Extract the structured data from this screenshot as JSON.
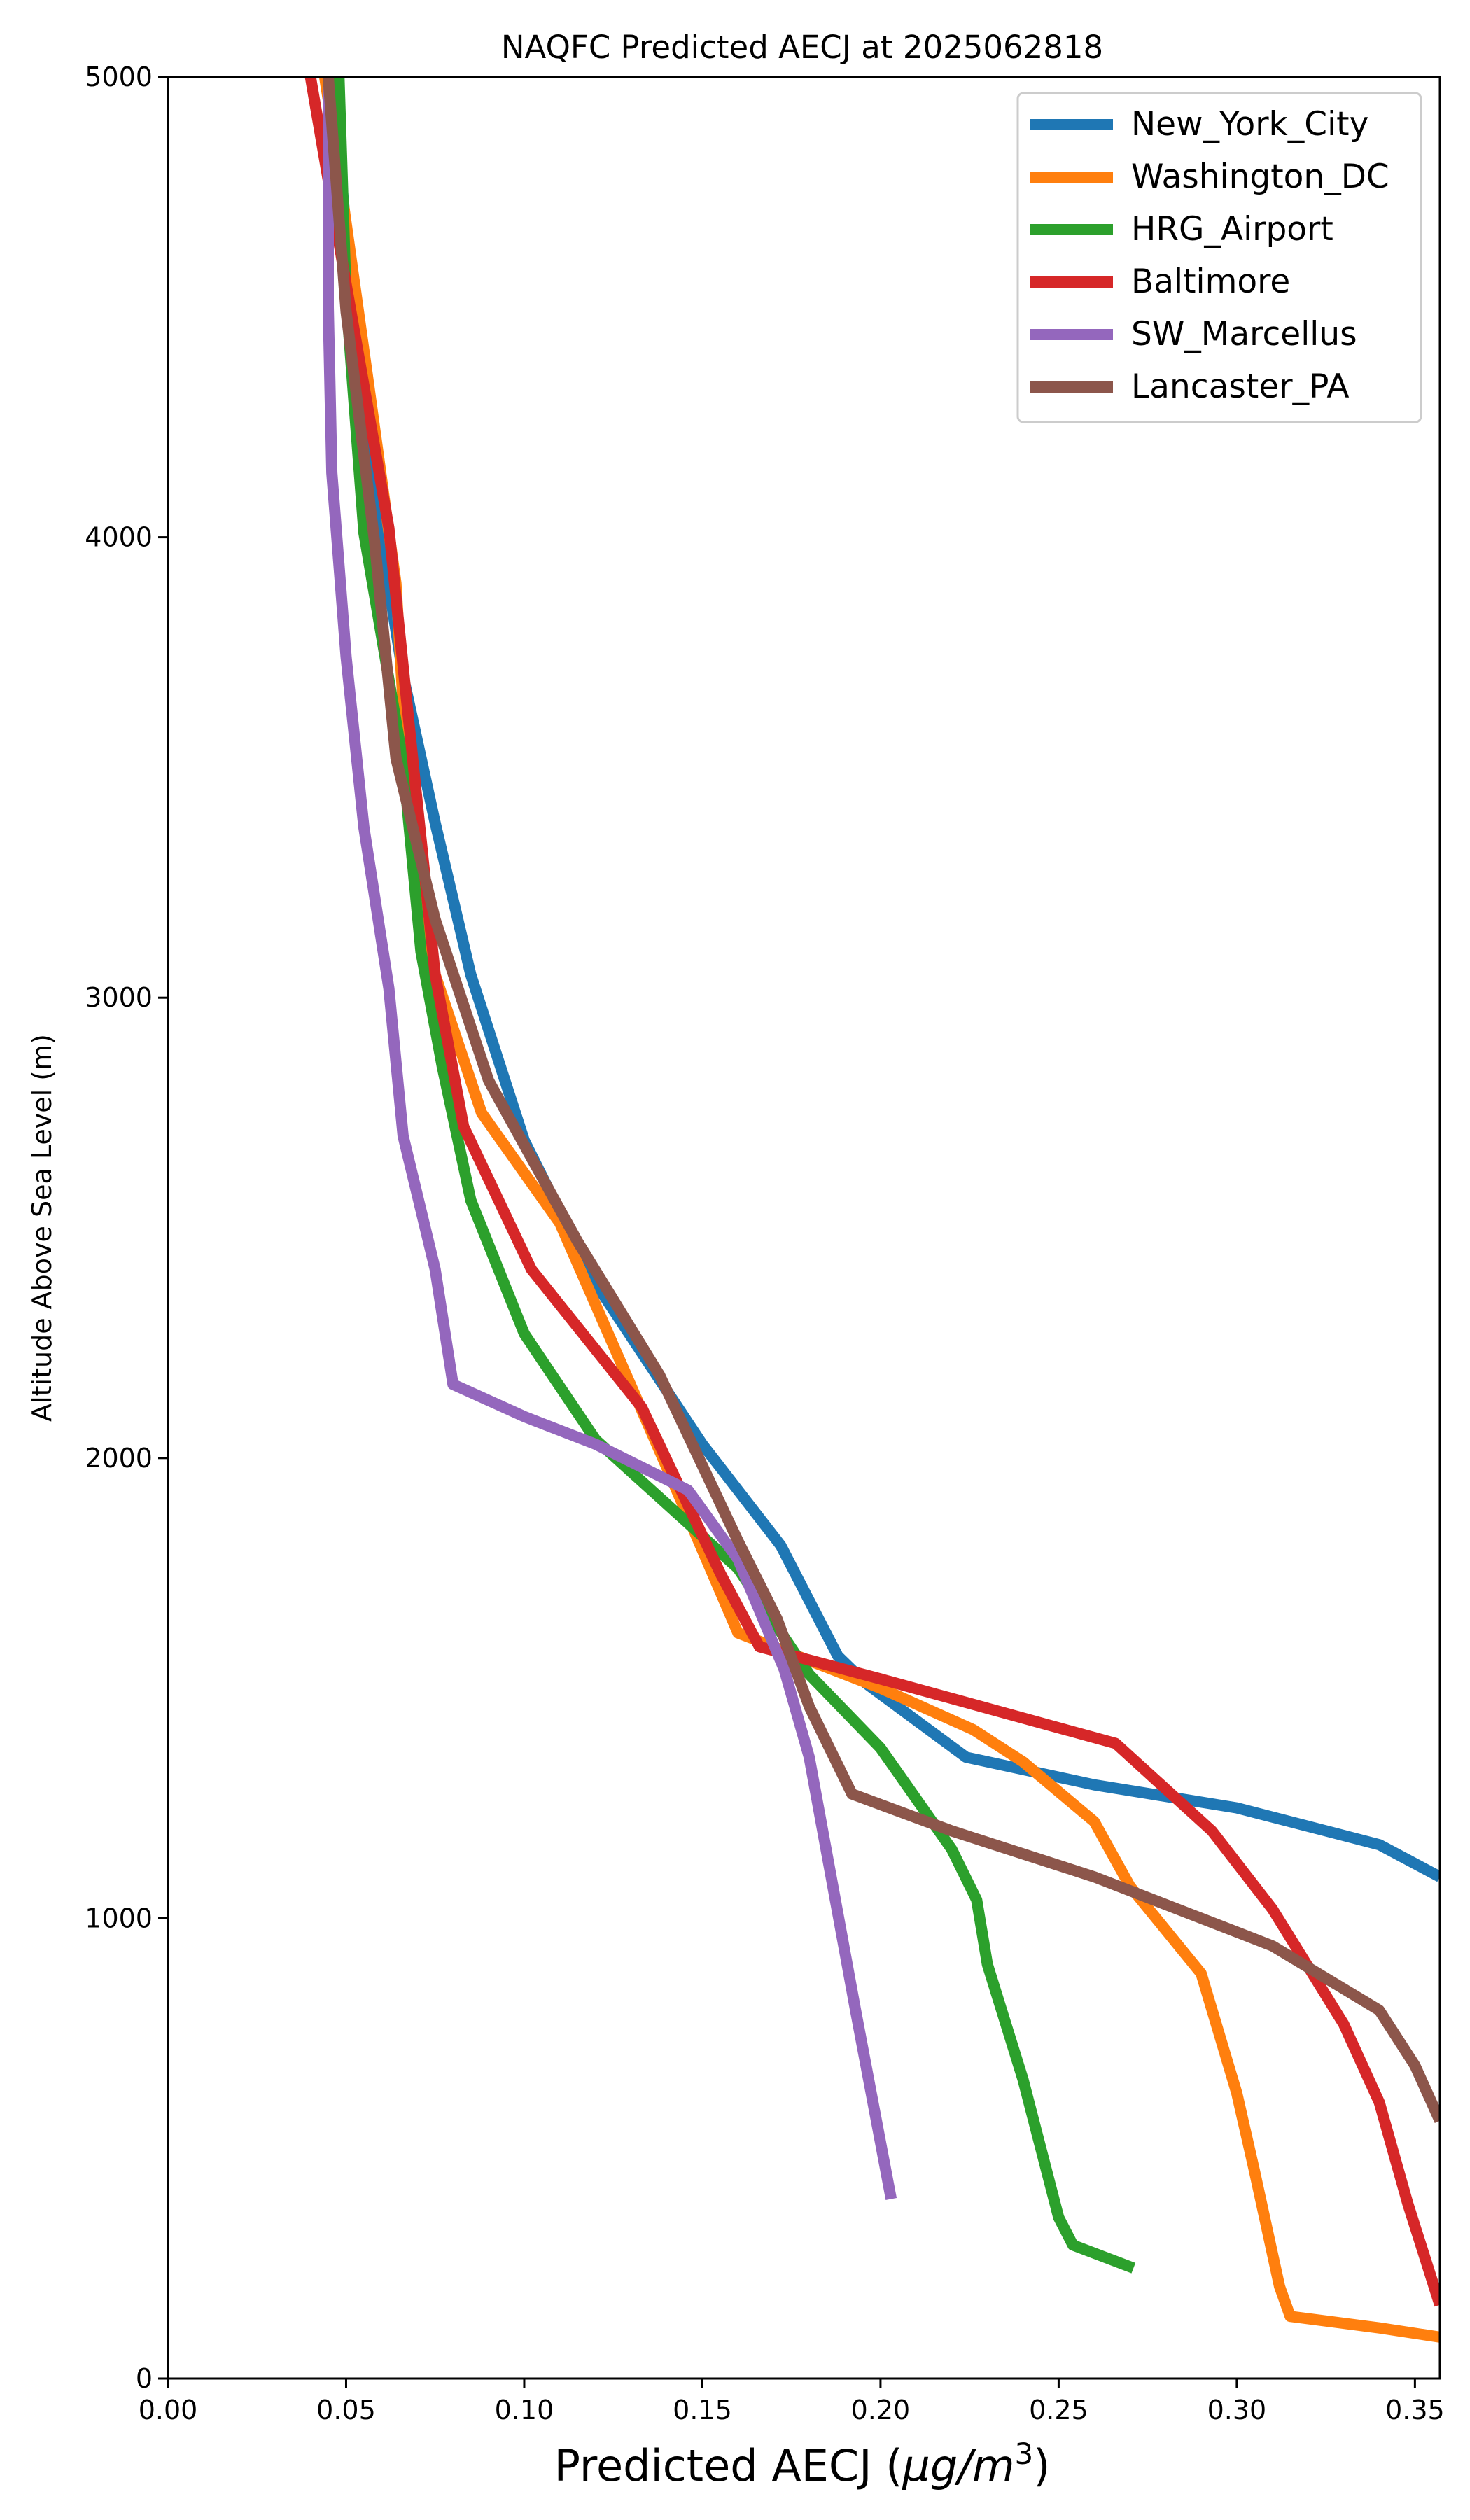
{
  "chart_data": {
    "type": "line",
    "title": "NAQFC Predicted AECJ at 2025062818",
    "xlabel": "Predicted AECJ (μg/m³)",
    "xlabel_base": "Predicted AECJ (",
    "xlabel_unit": "μg/m",
    "xlabel_sup": "3",
    "xlabel_close": ")",
    "ylabel": "Altitude Above Sea Level (m)",
    "xlim": [
      0,
      0.357
    ],
    "ylim": [
      0,
      5000
    ],
    "xticks": [
      "0.00",
      "0.05",
      "0.10",
      "0.15",
      "0.20",
      "0.25",
      "0.30",
      "0.35"
    ],
    "xtick_values": [
      0,
      0.05,
      0.1,
      0.15,
      0.2,
      0.25,
      0.3,
      0.35
    ],
    "yticks": [
      "0",
      "1000",
      "2000",
      "3000",
      "4000",
      "5000"
    ],
    "ytick_values": [
      0,
      1000,
      2000,
      3000,
      4000,
      5000
    ],
    "grid": false,
    "legend_position": "top-right",
    "series": [
      {
        "name": "New_York_City",
        "color": "#1f77b4",
        "points": [
          [
            0.357,
            1090
          ],
          [
            0.34,
            1160
          ],
          [
            0.3,
            1240
          ],
          [
            0.26,
            1290
          ],
          [
            0.224,
            1350
          ],
          [
            0.21,
            1430
          ],
          [
            0.196,
            1510
          ],
          [
            0.188,
            1570
          ],
          [
            0.172,
            1810
          ],
          [
            0.15,
            2030
          ],
          [
            0.12,
            2380
          ],
          [
            0.1,
            2690
          ],
          [
            0.085,
            3050
          ],
          [
            0.075,
            3380
          ],
          [
            0.066,
            3700
          ],
          [
            0.06,
            3990
          ],
          [
            0.052,
            4500
          ],
          [
            0.046,
            5000
          ]
        ]
      },
      {
        "name": "Washington_DC",
        "color": "#ff7f0e",
        "points": [
          [
            0.357,
            90
          ],
          [
            0.34,
            110
          ],
          [
            0.315,
            135
          ],
          [
            0.312,
            200
          ],
          [
            0.305,
            450
          ],
          [
            0.3,
            620
          ],
          [
            0.29,
            880
          ],
          [
            0.27,
            1070
          ],
          [
            0.26,
            1210
          ],
          [
            0.24,
            1340
          ],
          [
            0.226,
            1410
          ],
          [
            0.2,
            1500
          ],
          [
            0.16,
            1620
          ],
          [
            0.14,
            1980
          ],
          [
            0.11,
            2510
          ],
          [
            0.088,
            2750
          ],
          [
            0.075,
            3050
          ],
          [
            0.067,
            3510
          ],
          [
            0.064,
            3900
          ],
          [
            0.056,
            4350
          ],
          [
            0.047,
            4850
          ],
          [
            0.044,
            5000
          ]
        ]
      },
      {
        "name": "HRG_Airport",
        "color": "#2ca02c",
        "points": [
          [
            0.271,
            240
          ],
          [
            0.254,
            290
          ],
          [
            0.25,
            350
          ],
          [
            0.24,
            650
          ],
          [
            0.23,
            900
          ],
          [
            0.227,
            1040
          ],
          [
            0.22,
            1150
          ],
          [
            0.2,
            1370
          ],
          [
            0.18,
            1530
          ],
          [
            0.16,
            1760
          ],
          [
            0.12,
            2040
          ],
          [
            0.1,
            2270
          ],
          [
            0.085,
            2560
          ],
          [
            0.077,
            2850
          ],
          [
            0.071,
            3100
          ],
          [
            0.066,
            3510
          ],
          [
            0.055,
            4010
          ],
          [
            0.05,
            4520
          ],
          [
            0.048,
            5000
          ]
        ]
      },
      {
        "name": "Baltimore",
        "color": "#d62728",
        "points": [
          [
            0.357,
            160
          ],
          [
            0.348,
            380
          ],
          [
            0.34,
            600
          ],
          [
            0.33,
            770
          ],
          [
            0.31,
            1020
          ],
          [
            0.293,
            1190
          ],
          [
            0.266,
            1380
          ],
          [
            0.233,
            1450
          ],
          [
            0.2,
            1520
          ],
          [
            0.166,
            1590
          ],
          [
            0.155,
            1750
          ],
          [
            0.133,
            2110
          ],
          [
            0.102,
            2410
          ],
          [
            0.083,
            2720
          ],
          [
            0.075,
            3050
          ],
          [
            0.068,
            3570
          ],
          [
            0.062,
            4020
          ],
          [
            0.05,
            4550
          ],
          [
            0.04,
            5000
          ]
        ]
      },
      {
        "name": "SW_Marcellus",
        "color": "#9467bd",
        "points": [
          [
            0.203,
            390
          ],
          [
            0.193,
            800
          ],
          [
            0.18,
            1350
          ],
          [
            0.173,
            1540
          ],
          [
            0.16,
            1780
          ],
          [
            0.146,
            1930
          ],
          [
            0.12,
            2030
          ],
          [
            0.1,
            2090
          ],
          [
            0.08,
            2160
          ],
          [
            0.075,
            2410
          ],
          [
            0.066,
            2700
          ],
          [
            0.062,
            3020
          ],
          [
            0.055,
            3370
          ],
          [
            0.05,
            3740
          ],
          [
            0.046,
            4140
          ],
          [
            0.045,
            4500
          ],
          [
            0.045,
            5000
          ]
        ]
      },
      {
        "name": "Lancaster_PA",
        "color": "#8c564b",
        "points": [
          [
            0.357,
            560
          ],
          [
            0.35,
            680
          ],
          [
            0.34,
            800
          ],
          [
            0.31,
            940
          ],
          [
            0.26,
            1090
          ],
          [
            0.22,
            1190
          ],
          [
            0.192,
            1270
          ],
          [
            0.18,
            1460
          ],
          [
            0.171,
            1650
          ],
          [
            0.16,
            1820
          ],
          [
            0.138,
            2180
          ],
          [
            0.115,
            2470
          ],
          [
            0.09,
            2820
          ],
          [
            0.075,
            3170
          ],
          [
            0.064,
            3520
          ],
          [
            0.058,
            3990
          ],
          [
            0.05,
            4490
          ],
          [
            0.045,
            5000
          ]
        ]
      }
    ]
  }
}
